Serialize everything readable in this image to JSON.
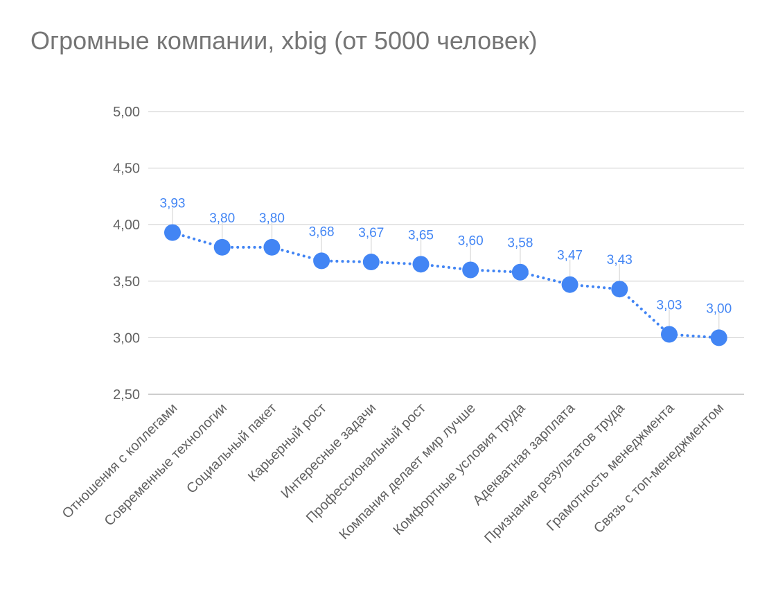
{
  "colors": {
    "series": "#4285f4",
    "grid": "#cccccc",
    "axis": "#bdbdbd",
    "text": "#616161",
    "title": "#757575"
  },
  "chart_data": {
    "type": "line",
    "title": "Огромные компании, xbig (от 5000 человек)",
    "xlabel": "",
    "ylabel": "",
    "ylim": [
      2.5,
      5.0
    ],
    "yticks": [
      2.5,
      3.0,
      3.5,
      4.0,
      4.5,
      5.0
    ],
    "ytick_labels": [
      "2,50",
      "3,00",
      "3,50",
      "4,00",
      "4,50",
      "5,00"
    ],
    "grid": true,
    "legend": "none",
    "line_style": "dotted",
    "categories": [
      "Отношения с коллегами",
      "Современные технологии",
      "Социальный пакет",
      "Карьерный рост",
      "Интересные задачи",
      "Профессиональный рост",
      "Компания делает мир лучше",
      "Комфортные условия труда",
      "Адекватная зарплата",
      "Признание результатов труда",
      "Грамотность менеджмента",
      "Связь с топ-менеджментом"
    ],
    "series": [
      {
        "values": [
          3.93,
          3.8,
          3.8,
          3.68,
          3.67,
          3.65,
          3.6,
          3.58,
          3.47,
          3.43,
          3.03,
          3.0
        ],
        "data_labels": [
          "3,93",
          "3,80",
          "3,80",
          "3,68",
          "3,67",
          "3,65",
          "3,60",
          "3,58",
          "3,47",
          "3,43",
          "3,03",
          "3,00"
        ]
      }
    ]
  }
}
